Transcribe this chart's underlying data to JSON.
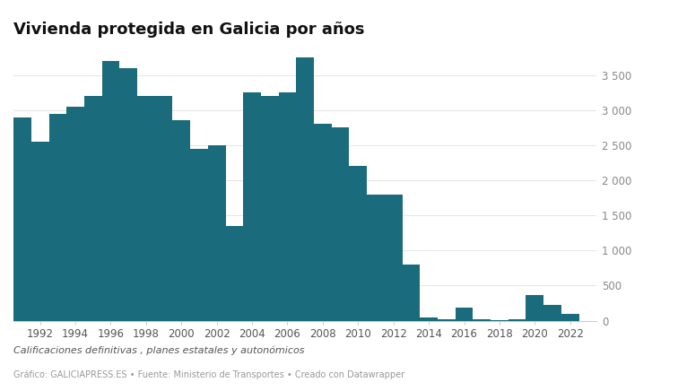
{
  "title": "Vivienda protegida en Galicia por años",
  "subtitle": "Calificaciones definitivas , planes estatales y autonómicos",
  "footer": "Gráfico: GALICIAPRESS.ES • Fuente: Ministerio de Transportes • Creado con Datawrapper",
  "years": [
    1991,
    1992,
    1993,
    1994,
    1995,
    1996,
    1997,
    1998,
    1999,
    2000,
    2001,
    2002,
    2003,
    2004,
    2005,
    2006,
    2007,
    2008,
    2009,
    2010,
    2011,
    2012,
    2013,
    2014,
    2015,
    2016,
    2017,
    2018,
    2019,
    2020,
    2021,
    2022
  ],
  "values": [
    2900,
    2550,
    2950,
    3050,
    3200,
    3700,
    3600,
    3200,
    3200,
    2850,
    2450,
    2500,
    1350,
    3250,
    3200,
    3250,
    3750,
    2800,
    2750,
    2200,
    1800,
    1800,
    800,
    50,
    25,
    180,
    15,
    8,
    15,
    370,
    230,
    100
  ],
  "bar_color": "#1a6b7c",
  "background_color": "#ffffff",
  "ytick_values": [
    0,
    500,
    1000,
    1500,
    2000,
    2500,
    3000,
    3500
  ],
  "ytick_labels": [
    "0",
    "500",
    "1 000",
    "1 500",
    "2 000",
    "2 500",
    "3 000",
    "3 500"
  ],
  "ylim": [
    0,
    3900
  ],
  "xlim": [
    1990.5,
    2023.5
  ],
  "xtick_years": [
    1992,
    1994,
    1996,
    1998,
    2000,
    2002,
    2004,
    2006,
    2008,
    2010,
    2012,
    2014,
    2016,
    2018,
    2020,
    2022
  ]
}
